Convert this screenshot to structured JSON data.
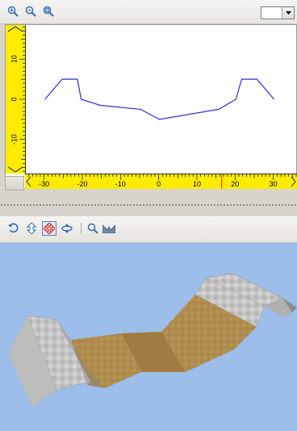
{
  "toolbar": {
    "icons": [
      "zoom-in-icon",
      "zoom-out-icon",
      "zoom-fit-icon"
    ],
    "line_color": "#ffffff",
    "dropdown_icon": "chevron-down-icon"
  },
  "cross_section": {
    "background": "#ffffff",
    "ruler_color": "#ffec00",
    "line_color": "#2d2ddb",
    "marker_color": "#e02020",
    "x_ticks": [
      "-30",
      "-20",
      "-10",
      "0",
      "10",
      "20",
      "30"
    ],
    "y_ticks": [
      "10",
      "0",
      "-10"
    ],
    "xlim": [
      -35,
      36
    ],
    "ylim": [
      -18.5,
      18.5
    ],
    "cursor_x": 16.5,
    "profile": {
      "x": [
        -30,
        -25.5,
        -21.5,
        -20.5,
        -15.5,
        -5,
        0,
        15.5,
        20,
        21.5,
        25.5,
        30
      ],
      "y": [
        0,
        5,
        5,
        0,
        -1.5,
        -2.5,
        -5,
        -2.5,
        0,
        5,
        5,
        0
      ]
    }
  },
  "view3d_toolbar": {
    "icons": [
      "rotate-icon",
      "pan-vertical-icon",
      "move-icon",
      "orbit-icon",
      "zoom-icon",
      "reset-view-icon"
    ],
    "active": "move-icon"
  },
  "view3d": {
    "background": "#9dbdea",
    "surface_color": "#b08c4e",
    "slope_color": "#c8c8c8"
  }
}
